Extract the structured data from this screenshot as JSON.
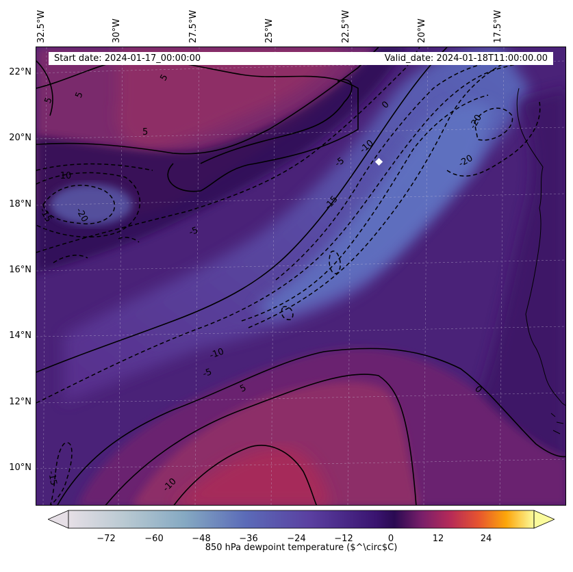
{
  "header": {
    "start_date": "Start date: 2024-01-17_00:00:00",
    "valid_date": "Valid_date: 2024-01-18T11:00:00.00"
  },
  "axes": {
    "longitudes": [
      "32.5°W",
      "30°W",
      "27.5°W",
      "25°W",
      "22.5°W",
      "20°W",
      "17.5°W"
    ],
    "latitudes": [
      "22°N",
      "20°N",
      "18°N",
      "16°N",
      "14°N",
      "12°N",
      "10°N"
    ]
  },
  "contour_labels": [
    "5",
    "5",
    "5",
    "5",
    "0",
    "0",
    "-10",
    "-15",
    "-20",
    "-20",
    "-5",
    "-5",
    "-10",
    "-5",
    "5",
    "-10",
    "-20",
    "-15",
    "-10",
    "-15"
  ],
  "colorbar": {
    "ticks": [
      "−72",
      "−60",
      "−48",
      "−36",
      "−24",
      "−12",
      "0",
      "12",
      "24"
    ],
    "title": "850 hPa dewpoint temperature ($^\\circ$C)",
    "range": [
      -84,
      34
    ],
    "extend": "both"
  },
  "colors": {
    "cold_extreme": "#e6dfe6",
    "cold_blue": "#5b6bb8",
    "zero_dark": "#2a0a52",
    "mid_warm": "#a8245a",
    "hot_extreme": "#fbfb9c",
    "marker": "#ffffff"
  }
}
